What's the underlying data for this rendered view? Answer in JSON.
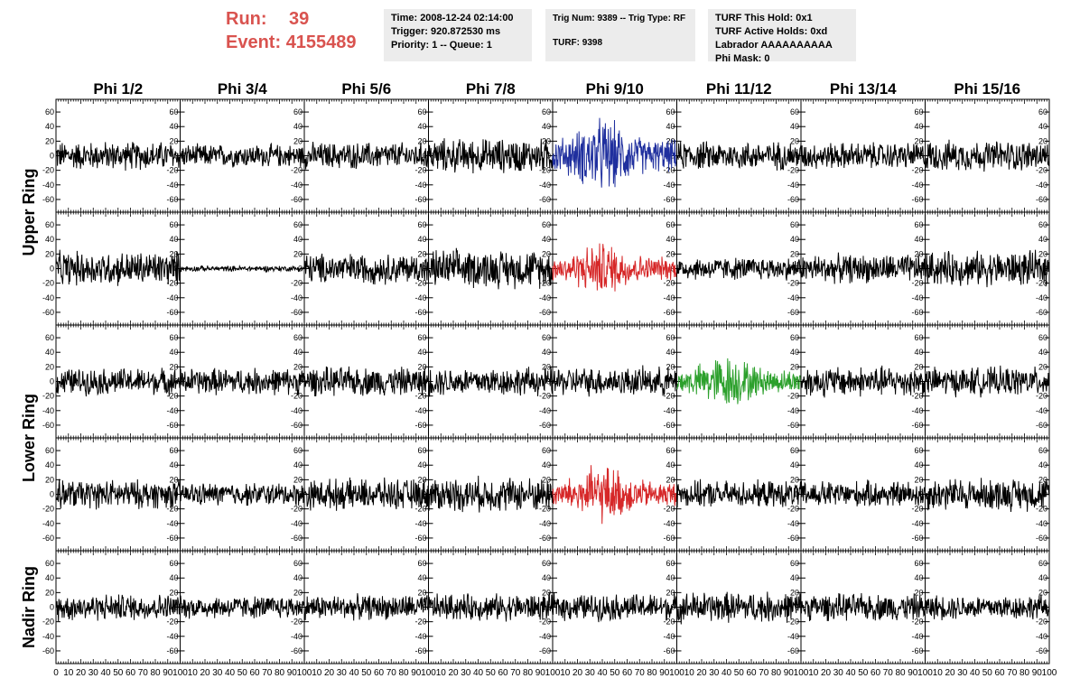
{
  "header": {
    "run_label": "Run:",
    "run_value": "39",
    "event_label": "Event:",
    "event_value": "4155489"
  },
  "info_boxes": {
    "time": "Time: 2008-12-24 02:14:00",
    "trigger": "Trigger: 920.872530 ms",
    "priority": "Priority: 1 -- Queue: 1",
    "trig_num": "Trig Num: 9389 -- Trig Type: RF",
    "turf": "TURF: 9398",
    "turf_this_hold": "TURF This Hold: 0x1",
    "turf_active_holds": "TURF Active Holds: 0xd",
    "labrador": "Labrador AAAAAAAAAA",
    "phi_mask": "Phi Mask: 0"
  },
  "chart_data": {
    "type": "line",
    "columns": [
      "Phi 1/2",
      "Phi 3/4",
      "Phi 5/6",
      "Phi 7/8",
      "Phi 9/10",
      "Phi 11/12",
      "Phi 13/14",
      "Phi 15/16"
    ],
    "rows": [
      {
        "label": "Upper Ring",
        "spans": [
          0,
          1
        ]
      },
      {
        "label": "Lower Ring",
        "spans": [
          2,
          3
        ]
      },
      {
        "label": "Nadir Ring",
        "spans": [
          4
        ]
      }
    ],
    "xlim": [
      0,
      100
    ],
    "x_ticks": [
      0,
      10,
      20,
      30,
      40,
      50,
      60,
      70,
      80,
      90,
      100
    ],
    "ylim": [
      -70,
      70
    ],
    "y_ticks": [
      -60,
      -40,
      -20,
      0,
      20,
      40,
      60
    ],
    "highlights": [
      {
        "row": 0,
        "col": 4,
        "color": "#1f2f9e"
      },
      {
        "row": 1,
        "col": 4,
        "color": "#d62728"
      },
      {
        "row": 2,
        "col": 5,
        "color": "#2ca02c"
      },
      {
        "row": 3,
        "col": 4,
        "color": "#d62728"
      }
    ],
    "amplitudes": [
      [
        15,
        12,
        14,
        18,
        28,
        15,
        14,
        16
      ],
      [
        18,
        3,
        16,
        20,
        20,
        12,
        15,
        18
      ],
      [
        14,
        14,
        15,
        15,
        15,
        20,
        16,
        15
      ],
      [
        15,
        12,
        16,
        18,
        22,
        14,
        14,
        17
      ],
      [
        14,
        12,
        13,
        14,
        14,
        16,
        14,
        13
      ]
    ],
    "default_color": "#000000"
  }
}
